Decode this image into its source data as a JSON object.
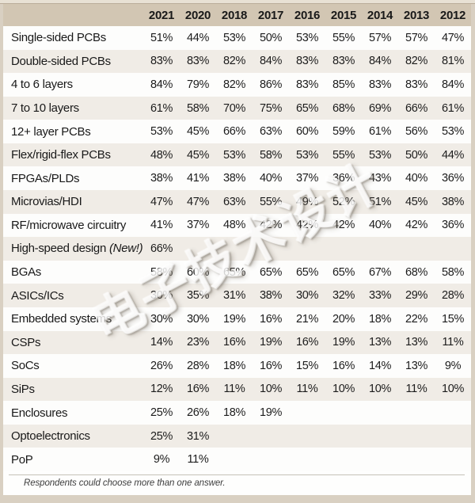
{
  "chart_data": {
    "type": "table",
    "title": "",
    "columns": [
      "2021",
      "2020",
      "2018",
      "2017",
      "2016",
      "2015",
      "2014",
      "2013",
      "2012"
    ],
    "rows": [
      {
        "label": "Single-sided PCBs",
        "note": "",
        "values": [
          "51%",
          "44%",
          "53%",
          "50%",
          "53%",
          "55%",
          "57%",
          "57%",
          "47%"
        ]
      },
      {
        "label": "Double-sided PCBs",
        "note": "",
        "values": [
          "83%",
          "83%",
          "82%",
          "84%",
          "83%",
          "83%",
          "84%",
          "82%",
          "81%"
        ]
      },
      {
        "label": "4 to 6 layers",
        "note": "",
        "values": [
          "84%",
          "79%",
          "82%",
          "86%",
          "83%",
          "85%",
          "83%",
          "83%",
          "84%"
        ]
      },
      {
        "label": "7 to 10 layers",
        "note": "",
        "values": [
          "61%",
          "58%",
          "70%",
          "75%",
          "65%",
          "68%",
          "69%",
          "66%",
          "61%"
        ]
      },
      {
        "label": "12+ layer PCBs",
        "note": "",
        "values": [
          "53%",
          "45%",
          "66%",
          "63%",
          "60%",
          "59%",
          "61%",
          "56%",
          "53%"
        ]
      },
      {
        "label": "Flex/rigid-flex PCBs",
        "note": "",
        "values": [
          "48%",
          "45%",
          "53%",
          "58%",
          "53%",
          "55%",
          "53%",
          "50%",
          "44%"
        ]
      },
      {
        "label": "FPGAs/PLDs",
        "note": "",
        "values": [
          "38%",
          "41%",
          "38%",
          "40%",
          "37%",
          "36%",
          "43%",
          "40%",
          "36%"
        ]
      },
      {
        "label": "Microvias/HDI",
        "note": "",
        "values": [
          "47%",
          "47%",
          "63%",
          "55%",
          "49%",
          "52%",
          "51%",
          "45%",
          "38%"
        ]
      },
      {
        "label": "RF/microwave circuitry",
        "note": "",
        "values": [
          "41%",
          "37%",
          "48%",
          "42%",
          "42%",
          "42%",
          "40%",
          "42%",
          "36%"
        ]
      },
      {
        "label": "High-speed design",
        "note": "(New!)",
        "values": [
          "66%",
          "",
          "",
          "",
          "",
          "",
          "",
          "",
          ""
        ]
      },
      {
        "label": "BGAs",
        "note": "",
        "values": [
          "58%",
          "60%",
          "65%",
          "65%",
          "65%",
          "65%",
          "67%",
          "68%",
          "58%"
        ]
      },
      {
        "label": "ASICs/ICs",
        "note": "",
        "values": [
          "30%",
          "35%",
          "31%",
          "38%",
          "30%",
          "32%",
          "33%",
          "29%",
          "28%"
        ]
      },
      {
        "label": "Embedded systems",
        "note": "",
        "values": [
          "30%",
          "30%",
          "19%",
          "16%",
          "21%",
          "20%",
          "18%",
          "22%",
          "15%"
        ]
      },
      {
        "label": "CSPs",
        "note": "",
        "values": [
          "14%",
          "23%",
          "16%",
          "19%",
          "16%",
          "19%",
          "13%",
          "13%",
          "11%"
        ]
      },
      {
        "label": "SoCs",
        "note": "",
        "values": [
          "26%",
          "28%",
          "18%",
          "16%",
          "15%",
          "16%",
          "14%",
          "13%",
          "9%"
        ]
      },
      {
        "label": "SiPs",
        "note": "",
        "values": [
          "12%",
          "16%",
          "11%",
          "10%",
          "11%",
          "10%",
          "10%",
          "11%",
          "10%"
        ]
      },
      {
        "label": "Enclosures",
        "note": "",
        "values": [
          "25%",
          "26%",
          "18%",
          "19%",
          "",
          "",
          "",
          "",
          ""
        ]
      },
      {
        "label": "Optoelectronics",
        "note": "",
        "values": [
          "25%",
          "31%",
          "",
          "",
          "",
          "",
          "",
          "",
          ""
        ]
      },
      {
        "label": "PoP",
        "note": "",
        "values": [
          "9%",
          "11%",
          "",
          "",
          "",
          "",
          "",
          "",
          ""
        ]
      }
    ],
    "footnote": "Respondents could choose more than one answer."
  },
  "watermark": {
    "text": "电子技术设计"
  },
  "colors": {
    "frame_tan": "#d9d0c2",
    "header_tan": "#d2c6b3",
    "top_strip": "#e8e1d4",
    "row_white": "#fdfdfc",
    "row_alt": "#f0ece6",
    "text": "#191919",
    "footnote_text": "#3d3d3d"
  }
}
